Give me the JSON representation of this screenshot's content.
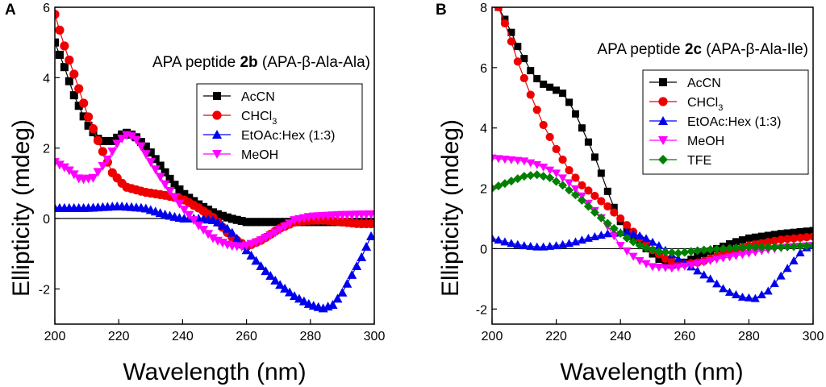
{
  "figure": {
    "width": 1024,
    "height": 480
  },
  "chart_data": [
    {
      "panel": "A",
      "type": "line",
      "title_pre": "APA peptide ",
      "title_bold": "2b",
      "title_post": " (APA-β-Ala-Ala)",
      "xlabel": "Wavelength (nm)",
      "ylabel": "Ellipticity (mdeg)",
      "xlim": [
        200,
        300
      ],
      "ylim": [
        -3,
        6
      ],
      "xticks": [
        200,
        220,
        240,
        260,
        280,
        300
      ],
      "yticks": [
        -2,
        0,
        2,
        4,
        6
      ],
      "zero_line": true,
      "x_step": 1.5,
      "series": [
        {
          "name": "AcCN",
          "sub": "",
          "color": "#000000",
          "marker": "square",
          "anchors": [
            [
              200,
              5.0
            ],
            [
              203,
              4.3
            ],
            [
              206,
              3.5
            ],
            [
              210,
              2.7
            ],
            [
              214,
              2.2
            ],
            [
              218,
              2.2
            ],
            [
              222,
              2.45
            ],
            [
              225,
              2.35
            ],
            [
              229,
              2.0
            ],
            [
              233,
              1.5
            ],
            [
              237,
              1.0
            ],
            [
              241,
              0.65
            ],
            [
              245,
              0.4
            ],
            [
              250,
              0.15
            ],
            [
              255,
              0.0
            ],
            [
              260,
              -0.1
            ],
            [
              265,
              -0.1
            ],
            [
              270,
              -0.1
            ],
            [
              280,
              -0.1
            ],
            [
              290,
              -0.1
            ],
            [
              300,
              -0.1
            ]
          ]
        },
        {
          "name": "CHCl",
          "sub": "3",
          "color": "#ee0000",
          "marker": "circle",
          "anchors": [
            [
              200,
              5.8
            ],
            [
              203,
              4.9
            ],
            [
              206,
              4.1
            ],
            [
              210,
              3.0
            ],
            [
              214,
              2.1
            ],
            [
              218,
              1.3
            ],
            [
              222,
              0.9
            ],
            [
              228,
              0.75
            ],
            [
              235,
              0.65
            ],
            [
              240,
              0.55
            ],
            [
              245,
              0.3
            ],
            [
              250,
              0.0
            ],
            [
              255,
              -0.5
            ],
            [
              260,
              -0.8
            ],
            [
              265,
              -0.6
            ],
            [
              270,
              -0.3
            ],
            [
              275,
              -0.1
            ],
            [
              280,
              -0.05
            ],
            [
              285,
              -0.05
            ],
            [
              290,
              -0.1
            ],
            [
              295,
              -0.15
            ],
            [
              300,
              -0.15
            ]
          ]
        },
        {
          "name": "EtOAc:Hex (1:3)",
          "sub": "",
          "color": "#0000ee",
          "marker": "triangle-up",
          "anchors": [
            [
              200,
              0.3
            ],
            [
              210,
              0.3
            ],
            [
              220,
              0.35
            ],
            [
              228,
              0.3
            ],
            [
              235,
              0.1
            ],
            [
              240,
              0.0
            ],
            [
              245,
              0.0
            ],
            [
              250,
              -0.05
            ],
            [
              255,
              -0.35
            ],
            [
              260,
              -0.9
            ],
            [
              265,
              -1.4
            ],
            [
              270,
              -1.85
            ],
            [
              275,
              -2.2
            ],
            [
              280,
              -2.45
            ],
            [
              284,
              -2.55
            ],
            [
              287,
              -2.45
            ],
            [
              290,
              -2.1
            ],
            [
              293,
              -1.6
            ],
            [
              296,
              -1.1
            ],
            [
              300,
              -0.3
            ]
          ]
        },
        {
          "name": "MeOH",
          "sub": "",
          "color": "#ff00ff",
          "marker": "triangle-down",
          "anchors": [
            [
              200,
              1.6
            ],
            [
              204,
              1.4
            ],
            [
              208,
              1.1
            ],
            [
              212,
              1.15
            ],
            [
              216,
              1.6
            ],
            [
              220,
              2.2
            ],
            [
              223,
              2.4
            ],
            [
              226,
              2.2
            ],
            [
              230,
              1.6
            ],
            [
              235,
              0.9
            ],
            [
              240,
              0.3
            ],
            [
              245,
              -0.2
            ],
            [
              250,
              -0.6
            ],
            [
              255,
              -0.78
            ],
            [
              259,
              -0.8
            ],
            [
              264,
              -0.65
            ],
            [
              270,
              -0.35
            ],
            [
              275,
              -0.05
            ],
            [
              280,
              0.05
            ],
            [
              290,
              0.1
            ],
            [
              300,
              0.12
            ]
          ]
        }
      ]
    },
    {
      "panel": "B",
      "type": "line",
      "title_pre": "APA peptide ",
      "title_bold": "2c",
      "title_post": " (APA-β-Ala-Ile)",
      "xlabel": "Wavelength (nm)",
      "ylabel": "Ellipticity (mdeg)",
      "xlim": [
        200,
        300
      ],
      "ylim": [
        -2.5,
        8
      ],
      "xticks": [
        200,
        220,
        240,
        260,
        280,
        300
      ],
      "yticks": [
        -2,
        0,
        2,
        4,
        6,
        8
      ],
      "zero_line": true,
      "x_step": 2,
      "series": [
        {
          "name": "AcCN",
          "sub": "",
          "color": "#000000",
          "marker": "square",
          "anchors": [
            [
              202,
              8.0
            ],
            [
              205,
              7.4
            ],
            [
              208,
              6.7
            ],
            [
              212,
              5.9
            ],
            [
              215,
              5.5
            ],
            [
              219,
              5.3
            ],
            [
              222,
              5.15
            ],
            [
              225,
              4.7
            ],
            [
              228,
              4.0
            ],
            [
              231,
              3.3
            ],
            [
              234,
              2.5
            ],
            [
              237,
              1.6
            ],
            [
              240,
              0.9
            ],
            [
              244,
              0.4
            ],
            [
              248,
              0.0
            ],
            [
              252,
              -0.35
            ],
            [
              256,
              -0.55
            ],
            [
              260,
              -0.45
            ],
            [
              265,
              -0.2
            ],
            [
              270,
              0.0
            ],
            [
              275,
              0.2
            ],
            [
              280,
              0.35
            ],
            [
              290,
              0.5
            ],
            [
              300,
              0.6
            ]
          ]
        },
        {
          "name": "CHCl",
          "sub": "3",
          "color": "#ee0000",
          "marker": "circle",
          "anchors": [
            [
              202,
              8.0
            ],
            [
              205,
              7.2
            ],
            [
              208,
              6.2
            ],
            [
              212,
              5.1
            ],
            [
              216,
              4.1
            ],
            [
              220,
              3.3
            ],
            [
              224,
              2.6
            ],
            [
              228,
              2.1
            ],
            [
              232,
              1.75
            ],
            [
              236,
              1.4
            ],
            [
              240,
              1.0
            ],
            [
              245,
              0.45
            ],
            [
              250,
              -0.05
            ],
            [
              255,
              -0.4
            ],
            [
              260,
              -0.5
            ],
            [
              265,
              -0.45
            ],
            [
              270,
              -0.25
            ],
            [
              275,
              -0.05
            ],
            [
              280,
              0.1
            ],
            [
              290,
              0.3
            ],
            [
              300,
              0.4
            ]
          ]
        },
        {
          "name": "EtOAc:Hex (1:3)",
          "sub": "",
          "color": "#0000ee",
          "marker": "triangle-up",
          "anchors": [
            [
              200,
              0.35
            ],
            [
              205,
              0.2
            ],
            [
              210,
              0.1
            ],
            [
              215,
              0.05
            ],
            [
              220,
              0.1
            ],
            [
              225,
              0.2
            ],
            [
              230,
              0.35
            ],
            [
              236,
              0.5
            ],
            [
              242,
              0.55
            ],
            [
              247,
              0.4
            ],
            [
              252,
              0.1
            ],
            [
              256,
              -0.2
            ],
            [
              262,
              -0.6
            ],
            [
              268,
              -1.0
            ],
            [
              273,
              -1.4
            ],
            [
              278,
              -1.6
            ],
            [
              282,
              -1.65
            ],
            [
              286,
              -1.4
            ],
            [
              290,
              -0.9
            ],
            [
              294,
              -0.4
            ],
            [
              297,
              0.0
            ],
            [
              300,
              0.1
            ]
          ]
        },
        {
          "name": "MeOH",
          "sub": "",
          "color": "#ff00ff",
          "marker": "triangle-down",
          "anchors": [
            [
              200,
              3.0
            ],
            [
              205,
              2.95
            ],
            [
              210,
              2.9
            ],
            [
              215,
              2.75
            ],
            [
              220,
              2.5
            ],
            [
              225,
              2.1
            ],
            [
              230,
              1.5
            ],
            [
              235,
              0.9
            ],
            [
              240,
              0.1
            ],
            [
              245,
              -0.35
            ],
            [
              250,
              -0.6
            ],
            [
              256,
              -0.65
            ],
            [
              262,
              -0.55
            ],
            [
              270,
              -0.35
            ],
            [
              278,
              -0.2
            ],
            [
              285,
              -0.05
            ],
            [
              292,
              0.05
            ],
            [
              300,
              0.1
            ]
          ]
        },
        {
          "name": "TFE",
          "sub": "",
          "color": "#008000",
          "marker": "diamond",
          "anchors": [
            [
              200,
              2.0
            ],
            [
              205,
              2.2
            ],
            [
              210,
              2.4
            ],
            [
              214,
              2.45
            ],
            [
              218,
              2.35
            ],
            [
              222,
              2.1
            ],
            [
              227,
              1.7
            ],
            [
              232,
              1.2
            ],
            [
              237,
              0.75
            ],
            [
              242,
              0.35
            ],
            [
              247,
              0.05
            ],
            [
              252,
              -0.1
            ],
            [
              258,
              -0.15
            ],
            [
              265,
              -0.05
            ],
            [
              272,
              0.0
            ],
            [
              280,
              0.05
            ],
            [
              290,
              0.05
            ],
            [
              300,
              0.1
            ]
          ]
        }
      ]
    }
  ]
}
